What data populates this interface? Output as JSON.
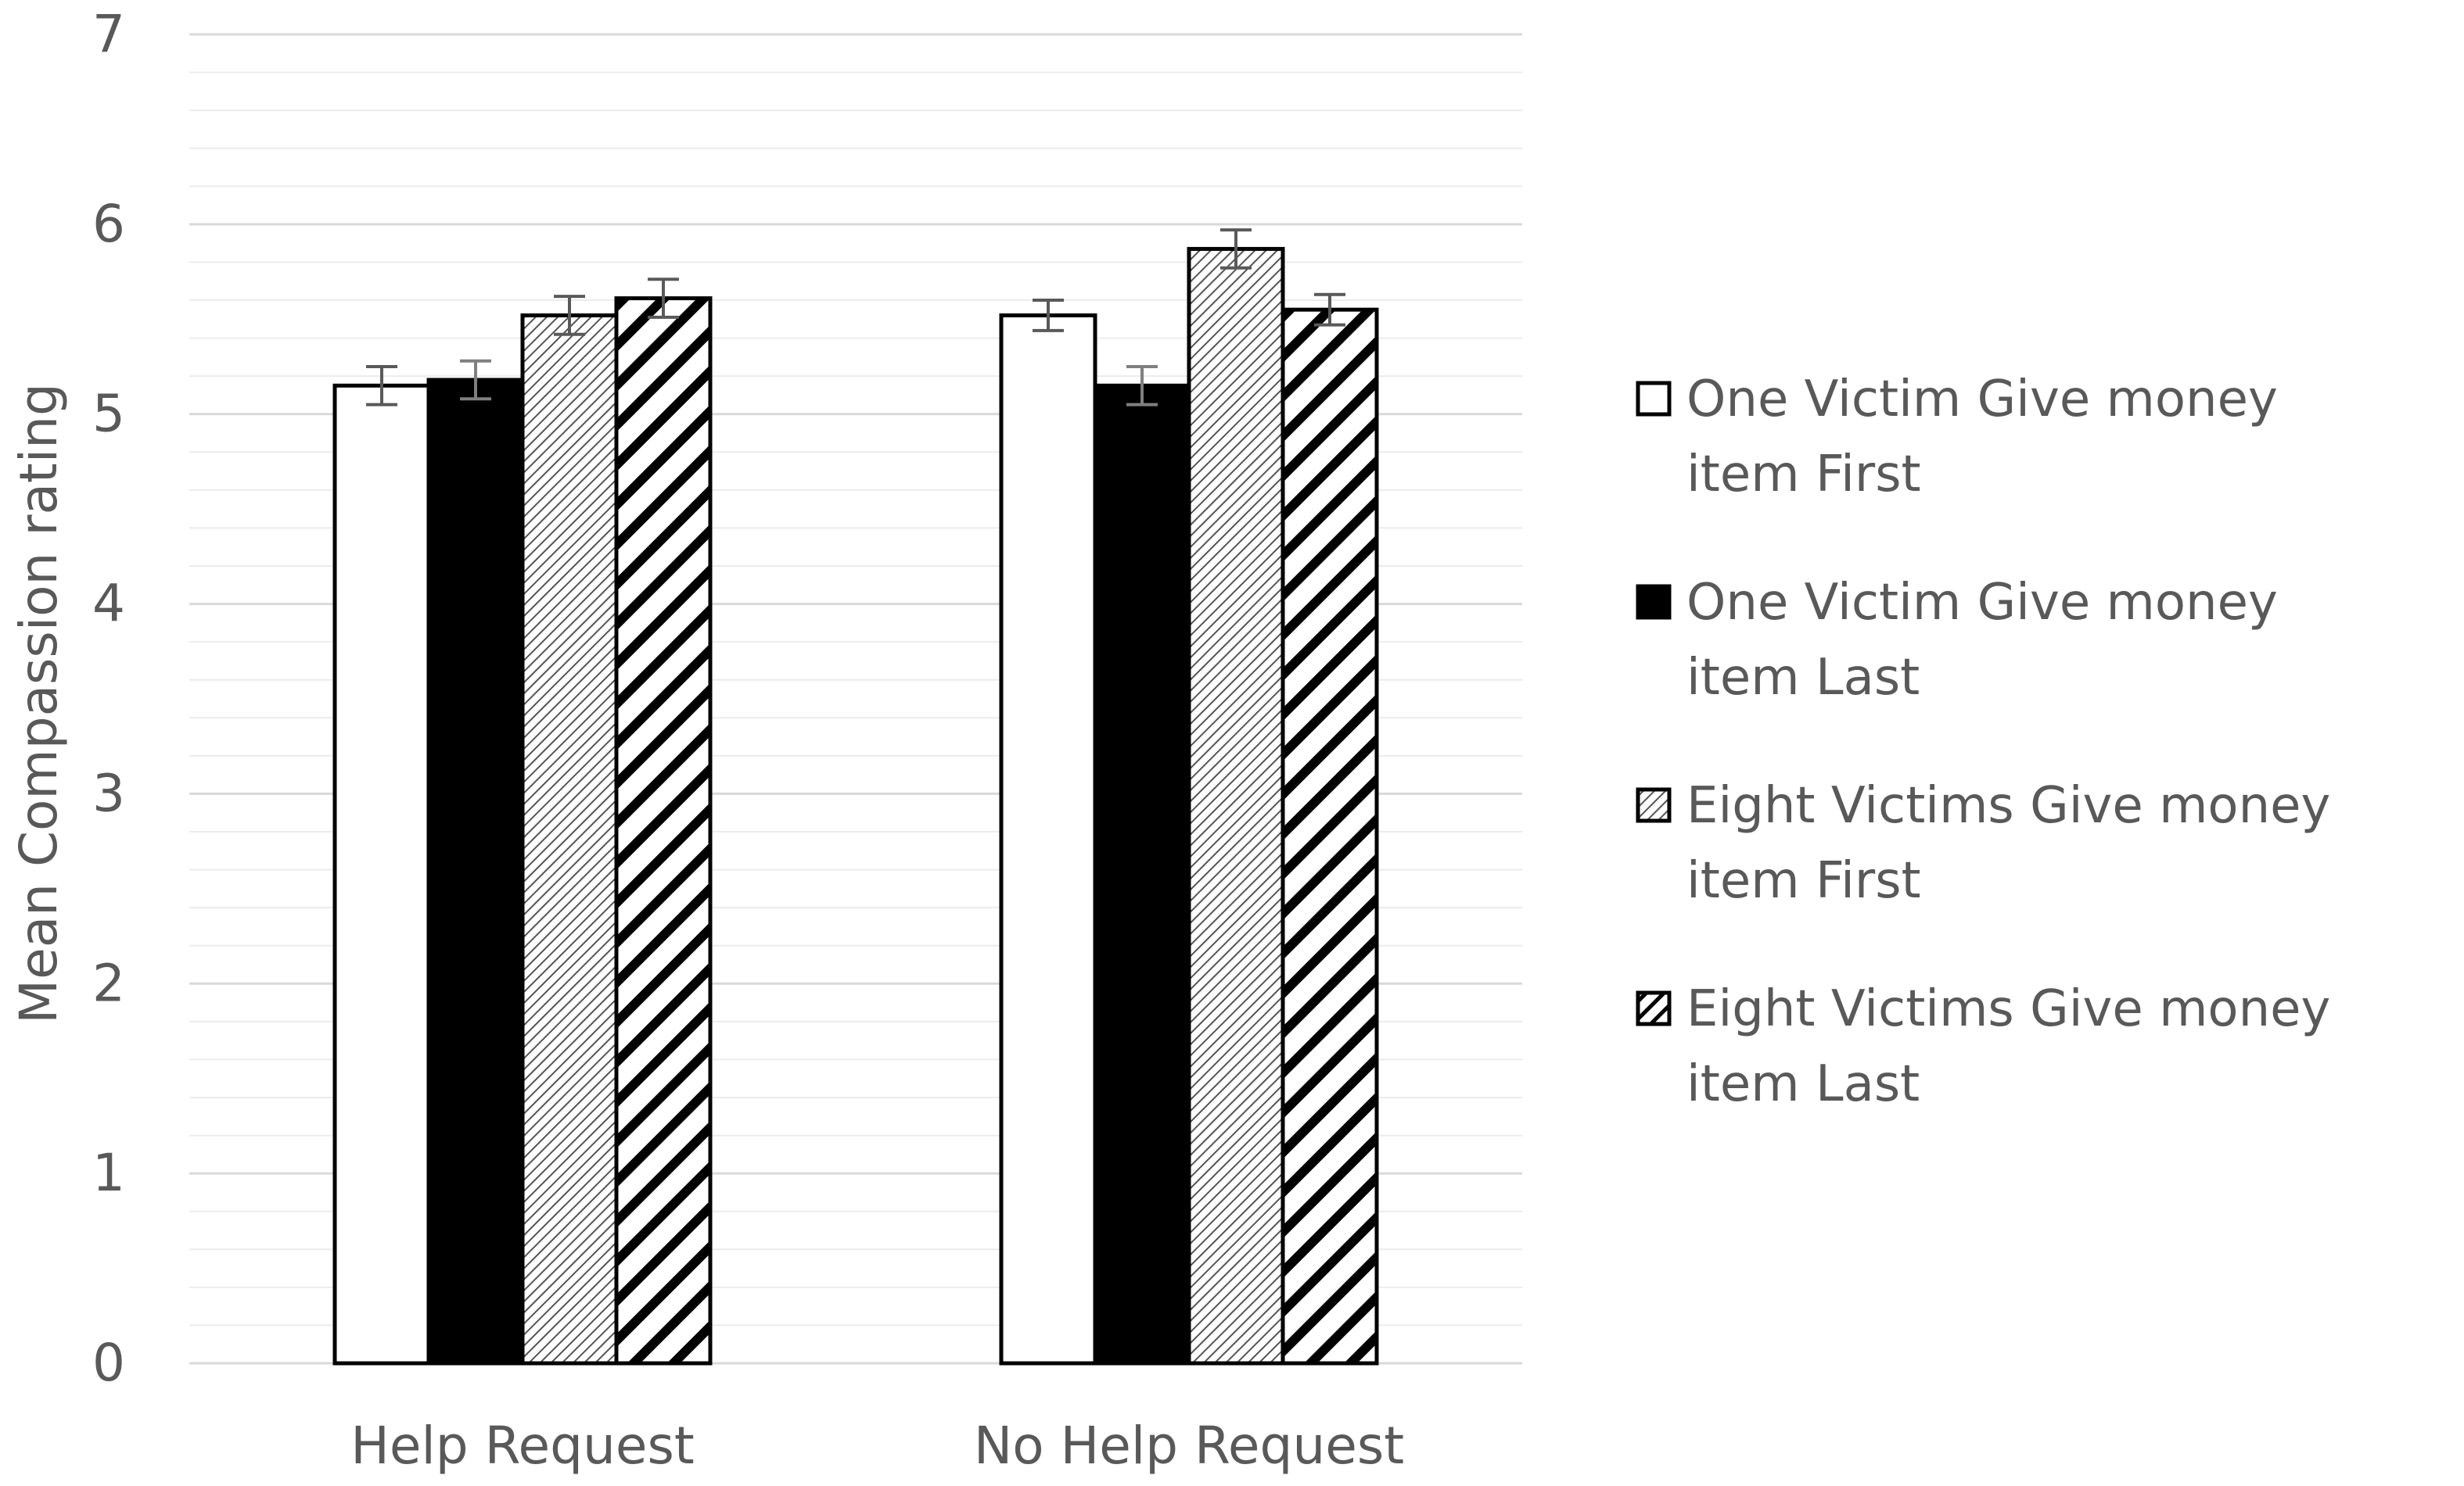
{
  "chart_data": {
    "type": "bar",
    "title": "",
    "xlabel": "",
    "ylabel": "Mean Compassion rating",
    "ylim": [
      0,
      7
    ],
    "yticks": [
      0,
      1,
      2,
      3,
      4,
      5,
      6,
      7
    ],
    "minor_grid_step": 0.2,
    "grid": true,
    "legend_position": "right",
    "error_bars": true,
    "categories": [
      "Help Request",
      "No Help Request"
    ],
    "series": [
      {
        "name": "One Victim Give money item First",
        "values": [
          5.15,
          5.52
        ],
        "errors": [
          0.1,
          0.08
        ],
        "fill": "white"
      },
      {
        "name": "One Victim Give money item Last",
        "values": [
          5.18,
          5.15
        ],
        "errors": [
          0.1,
          0.1
        ],
        "fill": "black"
      },
      {
        "name": "Eight Victims Give money item First",
        "values": [
          5.52,
          5.87
        ],
        "errors": [
          0.1,
          0.1
        ],
        "fill": "hatch-thin"
      },
      {
        "name": "Eight Victims Give money item Last",
        "values": [
          5.61,
          5.55
        ],
        "errors": [
          0.1,
          0.08
        ],
        "fill": "hatch-bold"
      }
    ],
    "colors": {
      "axis_text": "#595959",
      "major_grid": "#d9d9d9",
      "minor_grid": "#ececec",
      "bar_stroke": "#000000"
    }
  }
}
